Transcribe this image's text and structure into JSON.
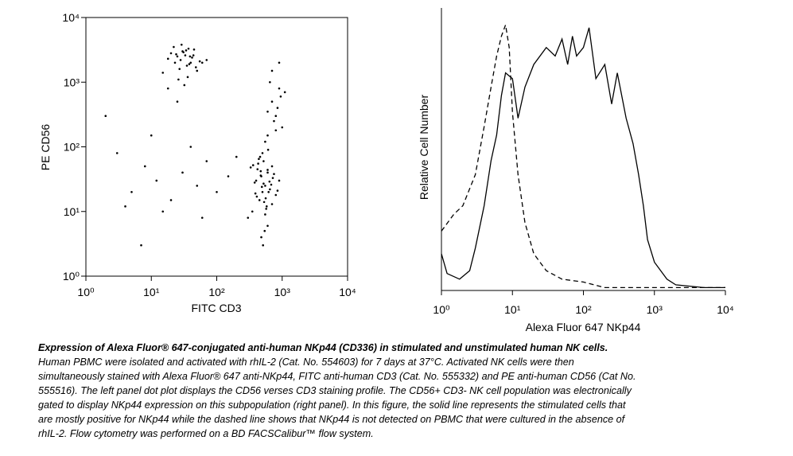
{
  "chart_data": [
    {
      "type": "scatter",
      "x_label": "FITC CD3",
      "y_label": "PE CD56",
      "log_x": true,
      "log_y": true,
      "color": "#000000",
      "xlim": [
        1,
        10000
      ],
      "ylim": [
        1,
        10000
      ],
      "xticks": [
        {
          "value": 1,
          "label": "10⁰"
        },
        {
          "value": 10,
          "label": "10¹"
        },
        {
          "value": 100,
          "label": "10²"
        },
        {
          "value": 1000,
          "label": "10³"
        },
        {
          "value": 10000,
          "label": "10⁴"
        }
      ],
      "yticks": [
        {
          "value": 1,
          "label": "10⁰"
        },
        {
          "value": 10,
          "label": "10¹"
        },
        {
          "value": 100,
          "label": "10²"
        },
        {
          "value": 1000,
          "label": "10³"
        },
        {
          "value": 10000,
          "label": "10⁴"
        }
      ],
      "x": [
        25,
        30,
        40,
        35,
        20,
        28,
        45,
        50,
        33,
        22,
        38,
        42,
        27,
        31,
        55,
        18,
        36,
        29,
        48,
        24,
        60,
        15,
        39,
        34,
        26,
        44,
        70,
        32,
        23,
        37,
        400,
        500,
        600,
        450,
        550,
        700,
        350,
        480,
        520,
        650,
        800,
        420,
        380,
        580,
        900,
        300,
        460,
        540,
        620,
        750,
        510,
        430,
        560,
        680,
        470,
        390,
        610,
        530,
        720,
        490,
        440,
        570,
        330,
        850,
        600,
        500,
        410,
        640,
        470,
        550,
        360,
        700,
        520,
        480,
        600,
        600,
        800,
        700,
        900,
        1000,
        650,
        750,
        850,
        550,
        950,
        700,
        800,
        600,
        900,
        1100,
        5,
        8,
        12,
        20,
        30,
        50,
        70,
        3,
        15,
        40,
        100,
        2,
        25,
        60,
        10,
        7,
        150,
        4,
        200,
        18
      ],
      "y": [
        2500,
        3000,
        2000,
        1800,
        2800,
        2200,
        3200,
        1500,
        2600,
        3500,
        1900,
        2400,
        1600,
        2900,
        2100,
        2300,
        1200,
        3800,
        1700,
        2700,
        2000,
        1400,
        2500,
        3100,
        1100,
        2600,
        2200,
        900,
        2000,
        3300,
        30,
        20,
        40,
        15,
        25,
        50,
        10,
        35,
        60,
        22,
        18,
        45,
        28,
        12,
        30,
        8,
        70,
        5,
        20,
        38,
        3,
        55,
        16,
        26,
        42,
        19,
        90,
        14,
        33,
        24,
        65,
        11,
        48,
        21,
        6,
        80,
        17,
        29,
        36,
        9,
        52,
        13,
        27,
        4,
        44,
        150,
        300,
        500,
        800,
        200,
        1000,
        250,
        400,
        120,
        600,
        1500,
        180,
        350,
        2000,
        700,
        20,
        50,
        30,
        15,
        40,
        25,
        60,
        80,
        10,
        100,
        20,
        300,
        500,
        8,
        150,
        3,
        35,
        12,
        70,
        800
      ]
    },
    {
      "type": "line",
      "x_label": "Alexa Fluor 647 NKp44",
      "y_label": "Relative Cell Number",
      "log_x": true,
      "xlim": [
        1,
        10000
      ],
      "ylim": [
        0,
        100
      ],
      "xticks": [
        {
          "value": 1,
          "label": "10⁰"
        },
        {
          "value": 10,
          "label": "10¹"
        },
        {
          "value": 100,
          "label": "10²"
        },
        {
          "value": 1000,
          "label": "10³"
        },
        {
          "value": 10000,
          "label": "10⁴"
        }
      ],
      "series": [
        {
          "color": "#000000",
          "style": "solid",
          "x": [
            1,
            1.2,
            1.8,
            2.5,
            3,
            4,
            5,
            6,
            7,
            8,
            10,
            12,
            15,
            20,
            30,
            40,
            50,
            60,
            70,
            80,
            100,
            120,
            150,
            200,
            250,
            300,
            400,
            500,
            600,
            700,
            800,
            1000,
            1500,
            2000,
            5000,
            10000
          ],
          "values": [
            13,
            6,
            4,
            7,
            15,
            30,
            46,
            55,
            69,
            77,
            75,
            61,
            72,
            80,
            86,
            83,
            89,
            80,
            90,
            83,
            86,
            93,
            75,
            80,
            66,
            77,
            61,
            52,
            41,
            30,
            18,
            10,
            4,
            2,
            1,
            1
          ]
        },
        {
          "color": "#000000",
          "style": "dashed",
          "x": [
            1,
            1.5,
            2,
            3,
            4,
            5,
            6,
            7,
            8,
            9,
            10,
            12,
            15,
            20,
            30,
            50,
            100,
            200,
            1000,
            10000
          ],
          "values": [
            21,
            27,
            30,
            41,
            58,
            72,
            83,
            90,
            94,
            86,
            63,
            41,
            24,
            13,
            7,
            4,
            3,
            1,
            1,
            1
          ]
        }
      ]
    }
  ],
  "caption": {
    "title": "Expression of Alexa Fluor® 647-conjugated anti-human NKp44 (CD336) in stimulated and unstimulated human NK cells.",
    "text": "Human PBMC were isolated and activated with rhIL-2 (Cat. No. 554603) for 7 days at 37°C. Activated NK cells were then simultaneously stained with Alexa Fluor® 647 anti-NKp44, FITC anti-human CD3 (Cat. No. 555332) and PE anti-human CD56 (Cat No. 555516).  The left panel dot plot displays the CD56 verses CD3 staining profile.  The CD56+ CD3- NK cell population was electronically gated to display NKp44 expression on this subpopulation (right panel).  In this figure, the solid line represents the stimulated cells that are mostly positive for NKp44 while the dashed line shows that NKp44 is not detected on PBMC that were cultured in the absence of rhIL-2. Flow cytometry was performed on a BD FACSCalibur™ flow system."
  }
}
